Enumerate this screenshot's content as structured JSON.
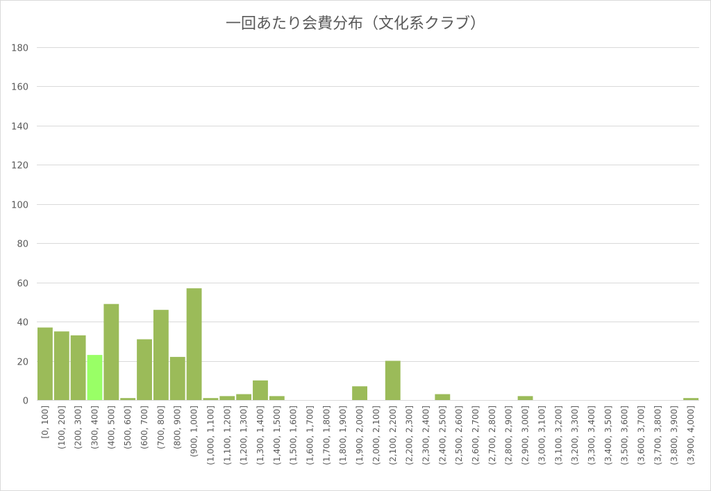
{
  "chart_data": {
    "type": "bar",
    "title": "一回あたり会費分布（文化系クラブ）",
    "categories": [
      "[0, 100]",
      "(100, 200]",
      "(200, 300]",
      "(300, 400]",
      "(400, 500]",
      "(500, 600]",
      "(600, 700]",
      "(700, 800]",
      "(800, 900]",
      "(900, 1,000]",
      "(1,000, 1,100]",
      "(1,100, 1,200]",
      "(1,200, 1,300]",
      "(1,300, 1,400]",
      "(1,400, 1,500]",
      "(1,500, 1,600]",
      "(1,600, 1,700]",
      "(1,700, 1,800]",
      "(1,800, 1,900]",
      "(1,900, 2,000]",
      "(2,000, 2,100]",
      "(2,100, 2,200]",
      "(2,200, 2,300]",
      "(2,300, 2,400]",
      "(2,400, 2,500]",
      "(2,500, 2,600]",
      "(2,600, 2,700]",
      "(2,700, 2,800]",
      "(2,800, 2,900]",
      "(2,900, 3,000]",
      "(3,000, 3,100]",
      "(3,100, 3,200]",
      "(3,200, 3,300]",
      "(3,300, 3,400]",
      "(3,400, 3,500]",
      "(3,500, 3,600]",
      "(3,600, 3,700]",
      "(3,700, 3,800]",
      "(3,800, 3,900]",
      "(3,900, 4,000]"
    ],
    "values": [
      37,
      35,
      33,
      23,
      49,
      1,
      31,
      46,
      22,
      57,
      1,
      2,
      3,
      10,
      2,
      0,
      0,
      0,
      0,
      7,
      0,
      20,
      0,
      0,
      3,
      0,
      0,
      0,
      0,
      2,
      0,
      0,
      0,
      0,
      0,
      0,
      0,
      0,
      0,
      1
    ],
    "ylim": [
      0,
      180
    ],
    "yticks": [
      0,
      20,
      40,
      60,
      80,
      100,
      120,
      140,
      160,
      180
    ],
    "grid": true,
    "legend": "none",
    "colors": {
      "bar": "#9bbb59",
      "highlight": "#99ff66"
    },
    "highlight_index": 3
  }
}
